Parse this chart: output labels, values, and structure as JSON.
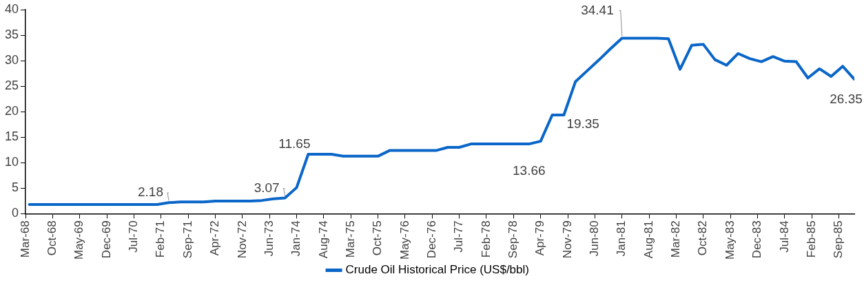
{
  "chart_data": {
    "type": "line",
    "x": [
      "1968-04",
      "1968-07",
      "1968-10",
      "1969-01",
      "1969-04",
      "1969-07",
      "1969-10",
      "1970-01",
      "1970-04",
      "1970-07",
      "1970-10",
      "1971-01",
      "1971-04",
      "1971-07",
      "1971-10",
      "1972-01",
      "1972-04",
      "1972-07",
      "1972-10",
      "1973-01",
      "1973-04",
      "1973-07",
      "1973-10",
      "1974-01",
      "1974-04",
      "1974-07",
      "1974-10",
      "1975-01",
      "1975-04",
      "1975-07",
      "1975-10",
      "1976-01",
      "1976-04",
      "1976-07",
      "1976-10",
      "1977-01",
      "1977-04",
      "1977-07",
      "1977-10",
      "1978-01",
      "1978-04",
      "1978-07",
      "1978-10",
      "1979-01",
      "1979-04",
      "1979-07",
      "1979-10",
      "1980-01",
      "1980-04",
      "1980-07",
      "1980-10",
      "1981-01",
      "1981-04",
      "1981-07",
      "1981-10",
      "1982-01",
      "1982-04",
      "1982-07",
      "1982-10",
      "1983-01",
      "1983-04",
      "1983-07",
      "1983-10",
      "1984-01",
      "1984-04",
      "1984-07",
      "1984-10",
      "1985-01",
      "1985-04",
      "1985-07",
      "1985-10",
      "1986-01"
    ],
    "series": [
      {
        "name": "Crude Oil Historical Price (US$/bbl)",
        "color": "#0a66c8",
        "values": [
          1.8,
          1.8,
          1.8,
          1.8,
          1.8,
          1.8,
          1.8,
          1.8,
          1.8,
          1.8,
          1.8,
          1.8,
          2.18,
          2.29,
          2.29,
          2.29,
          2.48,
          2.48,
          2.48,
          2.48,
          2.59,
          2.9,
          3.07,
          5.12,
          11.65,
          11.65,
          11.65,
          11.27,
          11.27,
          11.27,
          11.27,
          12.38,
          12.38,
          12.38,
          12.38,
          12.38,
          13.0,
          13.0,
          13.66,
          13.66,
          13.66,
          13.66,
          13.66,
          13.66,
          14.2,
          19.35,
          19.35,
          25.9,
          28.0,
          30.1,
          32.3,
          34.41,
          34.41,
          34.41,
          34.41,
          34.3,
          28.3,
          33.0,
          33.2,
          30.2,
          29.1,
          31.4,
          30.4,
          29.8,
          30.8,
          29.9,
          29.8,
          26.6,
          28.4,
          26.9,
          28.9,
          26.35
        ]
      }
    ],
    "xlim": [
      "1968-03",
      "1986-01"
    ],
    "xticks": [
      {
        "value": "1968-03",
        "label": "Mar-68"
      },
      {
        "value": "1968-10",
        "label": "Oct-68"
      },
      {
        "value": "1969-05",
        "label": "May-69"
      },
      {
        "value": "1969-12",
        "label": "Dec-69"
      },
      {
        "value": "1970-07",
        "label": "Jul-70"
      },
      {
        "value": "1971-02",
        "label": "Feb-71"
      },
      {
        "value": "1971-09",
        "label": "Sep-71"
      },
      {
        "value": "1972-04",
        "label": "Apr-72"
      },
      {
        "value": "1972-11",
        "label": "Nov-72"
      },
      {
        "value": "1973-06",
        "label": "Jun-73"
      },
      {
        "value": "1974-01",
        "label": "Jan-74"
      },
      {
        "value": "1974-08",
        "label": "Aug-74"
      },
      {
        "value": "1975-03",
        "label": "Mar-75"
      },
      {
        "value": "1975-10",
        "label": "Oct-75"
      },
      {
        "value": "1976-05",
        "label": "May-76"
      },
      {
        "value": "1976-12",
        "label": "Dec-76"
      },
      {
        "value": "1977-07",
        "label": "Jul-77"
      },
      {
        "value": "1978-02",
        "label": "Feb-78"
      },
      {
        "value": "1978-09",
        "label": "Sep-78"
      },
      {
        "value": "1979-04",
        "label": "Apr-79"
      },
      {
        "value": "1979-11",
        "label": "Nov-79"
      },
      {
        "value": "1980-06",
        "label": "Jun-80"
      },
      {
        "value": "1981-01",
        "label": "Jan-81"
      },
      {
        "value": "1981-08",
        "label": "Aug-81"
      },
      {
        "value": "1982-03",
        "label": "Mar-82"
      },
      {
        "value": "1982-10",
        "label": "Oct-82"
      },
      {
        "value": "1983-05",
        "label": "May-83"
      },
      {
        "value": "1983-12",
        "label": "Dec-83"
      },
      {
        "value": "1984-07",
        "label": "Jul-84"
      },
      {
        "value": "1985-02",
        "label": "Feb-85"
      },
      {
        "value": "1985-09",
        "label": "Sep-85"
      }
    ],
    "ylim": [
      0,
      40
    ],
    "yticks": [
      0,
      5,
      10,
      15,
      20,
      25,
      30,
      35,
      40
    ],
    "annotations": [
      {
        "text": "2.18",
        "x": "1971-04",
        "y": 2.18
      },
      {
        "text": "3.07",
        "x": "1973-10",
        "y": 3.07
      },
      {
        "text": "11.65",
        "x": "1974-04",
        "y": 11.65
      },
      {
        "text": "13.66",
        "x": "1979-01",
        "y": 13.66
      },
      {
        "text": "19.35",
        "x": "1979-10",
        "y": 19.35
      },
      {
        "text": "34.41",
        "x": "1981-01",
        "y": 34.41
      },
      {
        "text": "26.35",
        "x": "1986-01",
        "y": 26.35
      }
    ],
    "grid": false,
    "legend": "bottom",
    "marker": "none",
    "line_style": "solid"
  }
}
